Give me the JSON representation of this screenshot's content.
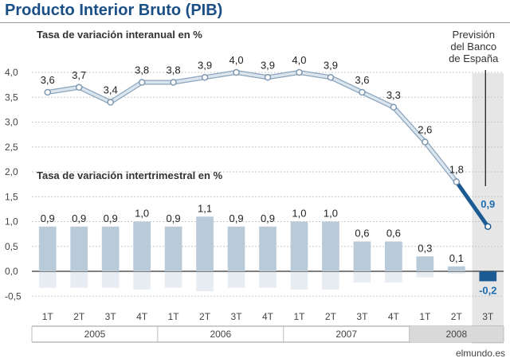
{
  "title": "Producto Interior Bruto (PIB)",
  "source": "elmundo.es",
  "forecast_note": [
    "Previsión",
    "del Banco",
    "de España"
  ],
  "colors": {
    "title": "#1a4f86",
    "bar": "#b9cad9",
    "forecast_bar": "#1c5a93",
    "line": "#b9cad9",
    "forecast_line": "#1c5a93",
    "forecast_panel": "#e6e6e6",
    "forecast_label": "#1c6db0"
  },
  "chart_data": {
    "type": "combo",
    "categories": [
      "1T",
      "2T",
      "3T",
      "4T",
      "1T",
      "2T",
      "3T",
      "4T",
      "1T",
      "2T",
      "3T",
      "4T",
      "1T",
      "2T",
      "3T"
    ],
    "years": [
      {
        "label": "2005",
        "quarters": 4
      },
      {
        "label": "2006",
        "quarters": 4
      },
      {
        "label": "2007",
        "quarters": 4
      },
      {
        "label": "2008",
        "quarters": 3
      }
    ],
    "yticks": [
      4.0,
      3.5,
      3.0,
      2.5,
      2.0,
      1.5,
      1.0,
      0.5,
      0.0,
      -0.5
    ],
    "ytick_labels": [
      "4,0",
      "3,5",
      "3,0",
      "2,5",
      "2,0",
      "1,5",
      "1,0",
      "0,5",
      "0,0",
      "-0,5"
    ],
    "ylim": [
      -0.5,
      4.0
    ],
    "grid": true,
    "forecast_index": 14,
    "line_series": {
      "name": "Tasa de variación interanual en %",
      "values": [
        3.6,
        3.7,
        3.4,
        3.8,
        3.8,
        3.9,
        4.0,
        3.9,
        4.0,
        3.9,
        3.6,
        3.3,
        2.6,
        1.8,
        0.9
      ],
      "labels": [
        "3,6",
        "3,7",
        "3,4",
        "3,8",
        "3,8",
        "3,9",
        "4,0",
        "3,9",
        "4,0",
        "3,9",
        "3,6",
        "3,3",
        "2,6",
        "1,8",
        "0,9"
      ]
    },
    "bar_series": {
      "name": "Tasa de variación intertrimestral en %",
      "values": [
        0.9,
        0.9,
        0.9,
        1.0,
        0.9,
        1.1,
        0.9,
        0.9,
        1.0,
        1.0,
        0.6,
        0.6,
        0.3,
        0.1,
        -0.2
      ],
      "labels": [
        "0,9",
        "0,9",
        "0,9",
        "1,0",
        "0,9",
        "1,1",
        "0,9",
        "0,9",
        "1,0",
        "1,0",
        "0,6",
        "0,6",
        "0,3",
        "0,1",
        "-0,2"
      ]
    }
  }
}
